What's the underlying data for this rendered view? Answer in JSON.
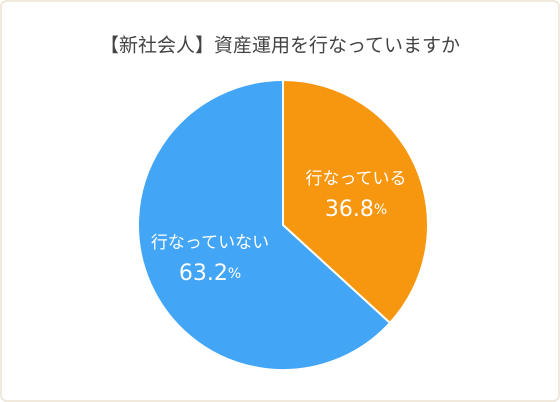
{
  "chart_data": {
    "type": "pie",
    "title": "【新社会人】資産運用を行なっていますか",
    "categories": [
      "行なっている",
      "行なっていない"
    ],
    "values": [
      36.8,
      63.2
    ],
    "value_labels": [
      "36.8%",
      "63.2%"
    ],
    "colors": [
      "#f7960f",
      "#42a5f5"
    ]
  }
}
